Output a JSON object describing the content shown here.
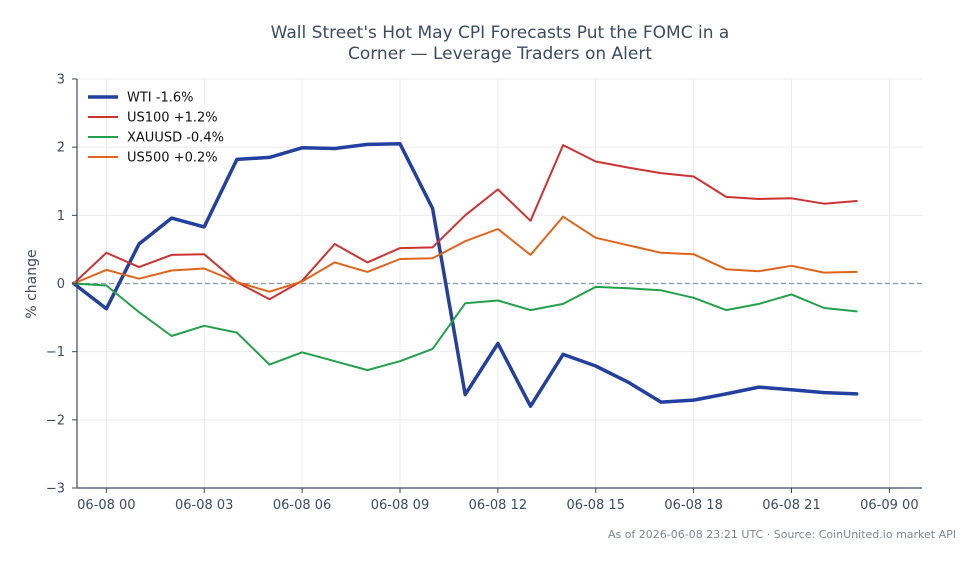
{
  "chart_data": {
    "type": "line",
    "title_lines": [
      "Wall Street's Hot May CPI Forecasts Put the FOMC in a",
      "Corner — Leverage Traders on Alert"
    ],
    "ylabel": "% change",
    "xlabel": "",
    "ylim": [
      -3,
      3
    ],
    "xlim": [
      -0.9,
      25.0
    ],
    "yticks": [
      3,
      2,
      1,
      0,
      -1,
      -2,
      -3
    ],
    "ytick_labels": [
      "3",
      "2",
      "1",
      "0",
      "−1",
      "−2",
      "−3"
    ],
    "xticks": [
      0,
      3,
      6,
      9,
      12,
      15,
      18,
      21,
      24
    ],
    "xtick_labels": [
      "06-08 00",
      "06-08 03",
      "06-08 06",
      "06-08 09",
      "06-08 12",
      "06-08 15",
      "06-08 18",
      "06-08 21",
      "06-09 00"
    ],
    "x_unit": "hours from 06-08 00:00 UTC",
    "grid": true,
    "zero_line": true,
    "legend_position": "top-left",
    "x": [
      -1,
      0,
      1,
      2,
      3,
      4,
      5,
      6,
      7,
      8,
      9,
      10,
      11,
      12,
      13,
      14,
      15,
      16,
      17,
      18,
      19,
      20,
      21,
      22,
      23
    ],
    "series": [
      {
        "name": "WTI -1.6%",
        "color": "#2340a0",
        "width": 3.5,
        "values": [
          0.0,
          -0.37,
          0.58,
          0.96,
          0.83,
          1.82,
          1.85,
          1.99,
          1.98,
          2.04,
          2.05,
          1.1,
          -1.63,
          -0.88,
          -1.8,
          -1.04,
          -1.21,
          -1.45,
          -1.74,
          -1.71,
          -1.62,
          -1.52,
          -1.56,
          -1.6,
          -1.62
        ]
      },
      {
        "name": "US100 +1.2%",
        "color": "#cc3333",
        "width": 2,
        "values": [
          0.0,
          0.45,
          0.24,
          0.42,
          0.43,
          0.02,
          -0.23,
          0.04,
          0.58,
          0.31,
          0.52,
          0.53,
          1.0,
          1.38,
          0.92,
          2.03,
          1.79,
          1.7,
          1.62,
          1.57,
          1.27,
          1.24,
          1.25,
          1.17,
          1.21
        ]
      },
      {
        "name": "XAUUSD -0.4%",
        "color": "#22a04a",
        "width": 2,
        "values": [
          0.0,
          -0.03,
          -0.42,
          -0.77,
          -0.62,
          -0.72,
          -1.19,
          -1.01,
          -1.14,
          -1.27,
          -1.14,
          -0.96,
          -0.29,
          -0.25,
          -0.39,
          -0.3,
          -0.05,
          -0.07,
          -0.1,
          -0.21,
          -0.39,
          -0.3,
          -0.16,
          -0.36,
          -0.41
        ]
      },
      {
        "name": "US500 +0.2%",
        "color": "#e0641a",
        "width": 2,
        "values": [
          0.0,
          0.2,
          0.07,
          0.19,
          0.22,
          0.02,
          -0.12,
          0.03,
          0.31,
          0.17,
          0.36,
          0.37,
          0.62,
          0.8,
          0.42,
          0.98,
          0.67,
          0.56,
          0.45,
          0.43,
          0.21,
          0.18,
          0.26,
          0.16,
          0.17
        ]
      }
    ]
  },
  "footer": "As of 2026-06-08 23:21 UTC · Source: CoinUnited.io market API"
}
